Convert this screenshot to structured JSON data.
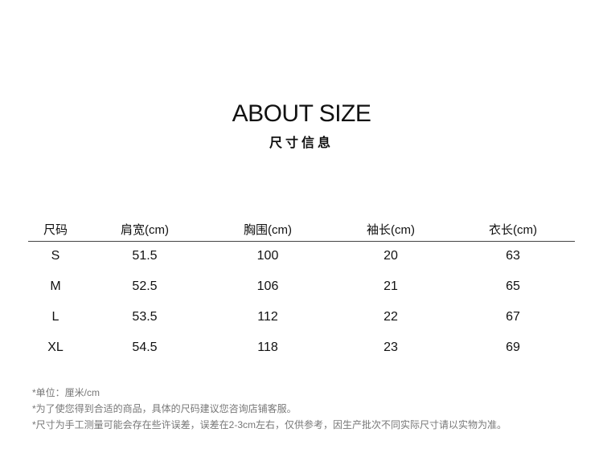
{
  "title": "ABOUT SIZE",
  "subtitle": "尺寸信息",
  "table": {
    "headers": [
      "尺码",
      "肩宽(cm)",
      "胸围(cm)",
      "袖长(cm)",
      "衣长(cm)"
    ],
    "rows": [
      [
        "S",
        "51.5",
        "100",
        "20",
        "63"
      ],
      [
        "M",
        "52.5",
        "106",
        "21",
        "65"
      ],
      [
        "L",
        "53.5",
        "112",
        "22",
        "67"
      ],
      [
        "XL",
        "54.5",
        "118",
        "23",
        "69"
      ]
    ]
  },
  "notes": [
    "*单位：厘米/cm",
    "*为了使您得到合适的商品，具体的尺码建议您咨询店铺客服。",
    "*尺寸为手工测量可能会存在些许误差，误差在2-3cm左右，仅供参考，因生产批次不同实际尺寸请以实物为准。"
  ]
}
